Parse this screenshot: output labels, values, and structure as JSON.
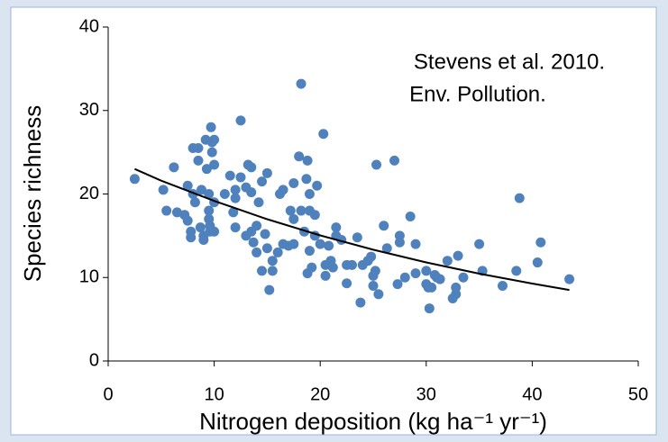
{
  "chart_data": {
    "type": "scatter",
    "xlabel": "Nitrogen deposition (kg ha⁻¹ yr⁻¹)",
    "ylabel": "Species richness",
    "annotations": [
      "Stevens et al. 2010.",
      "Env. Pollution."
    ],
    "color": "#4f81bd",
    "x": [
      2.5,
      5.2,
      5.5,
      6.2,
      6.5,
      7.2,
      7.5,
      7.5,
      7.8,
      7.8,
      8,
      8,
      8.2,
      8.5,
      8.5,
      8.7,
      8.8,
      9,
      9,
      9.2,
      9.3,
      9.5,
      9.5,
      9.5,
      9.6,
      9.6,
      9.7,
      9.8,
      9.8,
      10,
      10,
      10,
      10,
      11,
      11.5,
      11.8,
      12,
      12,
      12,
      12.5,
      12.5,
      13,
      13,
      13.2,
      13.5,
      13.5,
      13.5,
      13.7,
      14,
      14,
      14.2,
      14.5,
      14.5,
      14.8,
      15,
      15,
      15.2,
      15.5,
      15.5,
      16,
      16.2,
      16.5,
      16.5,
      17,
      17.2,
      17.5,
      17.5,
      17.5,
      18,
      18.2,
      18.2,
      18.5,
      18.7,
      18.8,
      18.8,
      19,
      19,
      19,
      19.2,
      19.5,
      19.5,
      19.7,
      20,
      20.3,
      20.5,
      20.5,
      20.8,
      21,
      21.2,
      21.5,
      21.5,
      22,
      22.5,
      22.5,
      23,
      23.5,
      23.8,
      24,
      24.5,
      24.8,
      25,
      25,
      25.2,
      25.3,
      25.5,
      26,
      26.3,
      27,
      27.3,
      27.5,
      27.5,
      28,
      28.5,
      29,
      29,
      30,
      30,
      30.2,
      30.3,
      30.5,
      30.8,
      31,
      31.3,
      32,
      32.5,
      32.8,
      32.8,
      33,
      33.5,
      35,
      35.3,
      37.2,
      38.5,
      38.8,
      40.5,
      40.8,
      43.5
    ],
    "values": [
      21.8,
      20.5,
      18,
      23.2,
      17.8,
      17.5,
      21,
      16.8,
      15.5,
      14.8,
      20,
      25.5,
      19,
      25.5,
      24,
      16,
      20.5,
      15,
      14.5,
      26.5,
      23,
      20,
      18,
      17,
      16.2,
      15.5,
      28,
      25,
      26.2,
      23.5,
      26.5,
      19,
      15.5,
      20,
      22.2,
      17.8,
      16,
      20.5,
      19.5,
      28.8,
      22,
      20.8,
      15,
      23.5,
      23.2,
      15.5,
      20.2,
      14.2,
      13,
      16.2,
      19,
      21.5,
      10.8,
      15.2,
      13.5,
      22.5,
      8.5,
      10.8,
      12,
      13,
      20,
      20.5,
      14,
      13.8,
      18,
      21.3,
      17,
      14,
      24.5,
      33.2,
      18,
      15.5,
      21.8,
      24,
      10.5,
      13.2,
      20,
      18,
      11.2,
      17.5,
      15,
      21,
      14,
      27.2,
      11.5,
      10.2,
      13.8,
      12,
      11.2,
      16,
      15,
      14.5,
      9.3,
      11.5,
      11.5,
      14.8,
      7,
      11.5,
      12,
      12.5,
      9,
      10.2,
      10.8,
      23.5,
      8,
      16.2,
      13.5,
      24,
      9.2,
      15,
      14.2,
      10,
      17.3,
      10.5,
      14,
      9.2,
      10.8,
      8.8,
      6.3,
      8.8,
      10.3,
      10,
      9.8,
      12,
      7.5,
      8,
      8.8,
      12.6,
      10,
      14,
      10.8,
      9,
      10.8,
      19.5,
      11.8,
      14.2,
      9.8
    ],
    "trend": {
      "color": "#000000",
      "x": [
        2.5,
        5,
        10,
        15,
        20,
        25,
        30,
        35,
        40,
        43.5
      ],
      "values": [
        23.0,
        21.6,
        19.17,
        16.98,
        15.04,
        13.33,
        11.81,
        10.46,
        9.27,
        8.5
      ]
    },
    "xlim": [
      0,
      50
    ],
    "xticks": [
      0,
      10,
      20,
      30,
      40,
      50
    ],
    "ylim": [
      0,
      40
    ],
    "yticks": [
      0,
      10,
      20,
      30,
      40
    ]
  }
}
